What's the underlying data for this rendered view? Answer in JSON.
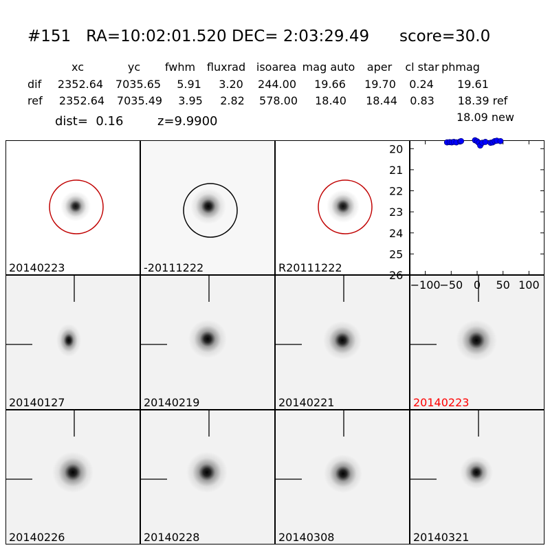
{
  "header": {
    "title": "#151   RA=10:02:01.520 DEC= 2:03:29.49      score=30.0"
  },
  "table": {
    "columns": [
      "xc",
      "yc",
      "fwhm",
      "fluxrad",
      "isoarea",
      "mag auto",
      "aper",
      "cl star",
      "phmag"
    ],
    "rows": [
      {
        "label": "dif",
        "values": [
          "2352.64",
          "7035.65",
          "5.91",
          "3.20",
          "244.00",
          "19.66",
          "19.70",
          "0.24",
          "19.61"
        ]
      },
      {
        "label": "ref",
        "values": [
          "2352.64",
          "7035.49",
          "3.95",
          "2.82",
          "578.00",
          "18.40",
          "18.44",
          "0.83",
          "18.39 ref"
        ]
      }
    ],
    "extra_phmag": "18.09 new"
  },
  "info": {
    "dist": "dist=  0.16",
    "z": "z=9.9900"
  },
  "top_panels": [
    {
      "label": "20140223",
      "circle_color": "#c00000"
    },
    {
      "label": "-20111222",
      "circle_color": "#000000"
    },
    {
      "label": "R20111222",
      "circle_color": "#c00000"
    }
  ],
  "stamps_row1": [
    {
      "label": "20140127",
      "highlight": false
    },
    {
      "label": "20140219",
      "highlight": false
    },
    {
      "label": "20140221",
      "highlight": false
    },
    {
      "label": "20140223",
      "highlight": true
    }
  ],
  "stamps_row2": [
    {
      "label": "20140226",
      "highlight": false
    },
    {
      "label": "20140228",
      "highlight": false
    },
    {
      "label": "20140308",
      "highlight": false
    },
    {
      "label": "20140321",
      "highlight": false
    }
  ],
  "colors": {
    "highlight_label": "#ff0000",
    "point_fill": "#0000ff",
    "point_edge": "#000080"
  },
  "chart_data": {
    "type": "scatter",
    "xlim": [
      -130,
      130
    ],
    "ylim": [
      26,
      19.6
    ],
    "xticks": [
      "−100",
      "−50",
      "0",
      "50",
      "100"
    ],
    "xtick_values": [
      -100,
      -50,
      0,
      50,
      100
    ],
    "yticks": [
      "20",
      "21",
      "22",
      "23",
      "24",
      "25",
      "26"
    ],
    "ytick_values": [
      20,
      21,
      22,
      23,
      24,
      25,
      26
    ],
    "points": [
      [
        -58,
        19.7
      ],
      [
        -53,
        19.69
      ],
      [
        -49,
        19.7
      ],
      [
        -45,
        19.68
      ],
      [
        -40,
        19.7
      ],
      [
        -33,
        19.66
      ],
      [
        -31,
        19.64
      ],
      [
        -4,
        19.6
      ],
      [
        0,
        19.65
      ],
      [
        3,
        19.72
      ],
      [
        6,
        19.85
      ],
      [
        10,
        19.72
      ],
      [
        16,
        19.68
      ],
      [
        26,
        19.72
      ],
      [
        30,
        19.7
      ],
      [
        34,
        19.64
      ],
      [
        38,
        19.62
      ],
      [
        45,
        19.64
      ]
    ]
  }
}
